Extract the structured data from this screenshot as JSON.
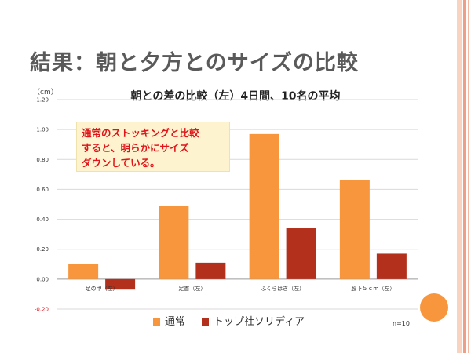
{
  "slide": {
    "title": "結果：朝と夕方とのサイズの比較",
    "callout_lines": [
      "通常のストッキングと比較",
      "すると、明らかにサイズ",
      "ダウンしている。"
    ],
    "n_note": "n=10"
  },
  "colors": {
    "series1": "#f7963d",
    "series2": "#b3301c",
    "title_text": "#5a5a5a",
    "callout_bg": "#fdf3cf",
    "callout_text": "#e0141a",
    "stripe_light": "#f9d3c0",
    "stripe_dark": "#ee9f86",
    "negative_tick": "#e0141a",
    "circle": "#f7963d"
  },
  "chart_data": {
    "type": "bar",
    "title": "朝との差の比較（左）4日間、10名の平均",
    "unit_label": "（cm）",
    "categories": [
      "足の甲（左）",
      "足首（左）",
      "ふくらはぎ（左）",
      "股下５ｃｍ（左）"
    ],
    "series": [
      {
        "name": "通常",
        "values": [
          0.1,
          0.49,
          0.97,
          0.66
        ]
      },
      {
        "name": "トップ社ソリディア",
        "values": [
          -0.07,
          0.11,
          0.34,
          0.17
        ]
      }
    ],
    "ylim": [
      -0.2,
      1.2
    ],
    "yticks": [
      1.2,
      1.0,
      0.8,
      0.6,
      0.4,
      0.2,
      0.0,
      -0.2
    ],
    "ytick_labels": [
      "1.20",
      "1.00",
      "0.80",
      "0.60",
      "0.40",
      "0.20",
      "0.00",
      "-0.20"
    ],
    "grid": true,
    "legend_position": "bottom"
  }
}
